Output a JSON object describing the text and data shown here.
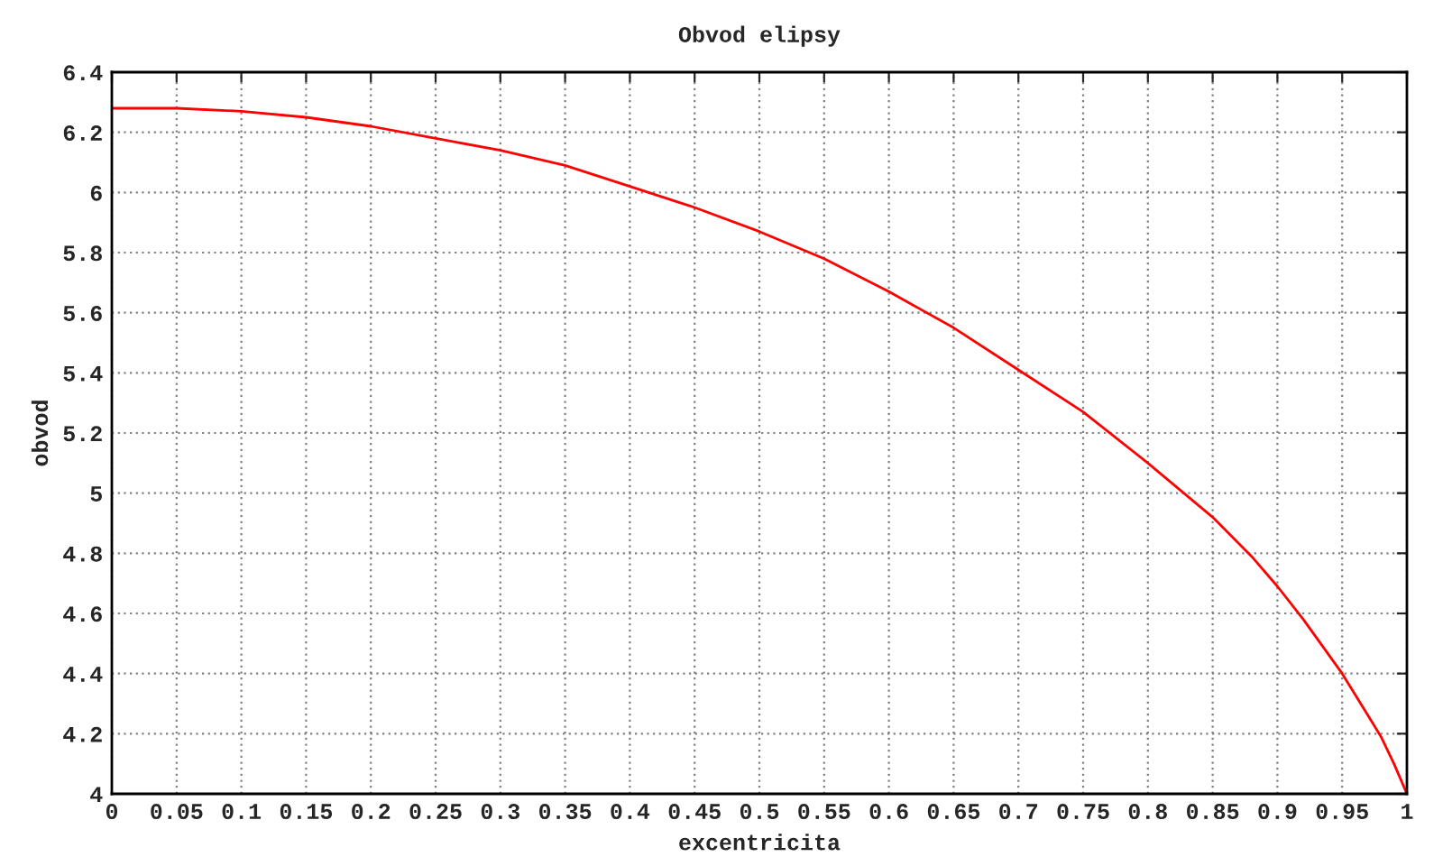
{
  "chart_data": {
    "type": "line",
    "title": "Obvod elipsy",
    "xlabel": "excentricita",
    "ylabel": "obvod",
    "x": [
      0,
      0.05,
      0.1,
      0.15,
      0.2,
      0.25,
      0.3,
      0.35,
      0.4,
      0.45,
      0.5,
      0.55,
      0.6,
      0.65,
      0.7,
      0.75,
      0.8,
      0.85,
      0.88,
      0.9,
      0.92,
      0.94,
      0.95,
      0.96,
      0.97,
      0.98,
      0.99,
      1
    ],
    "series": [
      {
        "color": "#ff0000",
        "values": [
          6.28,
          6.28,
          6.27,
          6.25,
          6.22,
          6.18,
          6.14,
          6.09,
          6.02,
          5.95,
          5.87,
          5.78,
          5.67,
          5.55,
          5.41,
          5.27,
          5.1,
          4.92,
          4.79,
          4.69,
          4.58,
          4.46,
          4.4,
          4.33,
          4.26,
          4.19,
          4.1,
          4.0
        ]
      }
    ],
    "xlim": [
      0,
      1
    ],
    "xticks": [
      0,
      0.05,
      0.1,
      0.15,
      0.2,
      0.25,
      0.3,
      0.35,
      0.4,
      0.45,
      0.5,
      0.55,
      0.6,
      0.65,
      0.7,
      0.75,
      0.8,
      0.85,
      0.9,
      0.95,
      1
    ],
    "ylim": [
      4,
      6.4
    ],
    "yticks": [
      4,
      4.2,
      4.4,
      4.6,
      4.8,
      5,
      5.2,
      5.4,
      5.6,
      5.8,
      6,
      6.2,
      6.4
    ],
    "grid": true,
    "marker": "none",
    "line_style": "solid"
  }
}
